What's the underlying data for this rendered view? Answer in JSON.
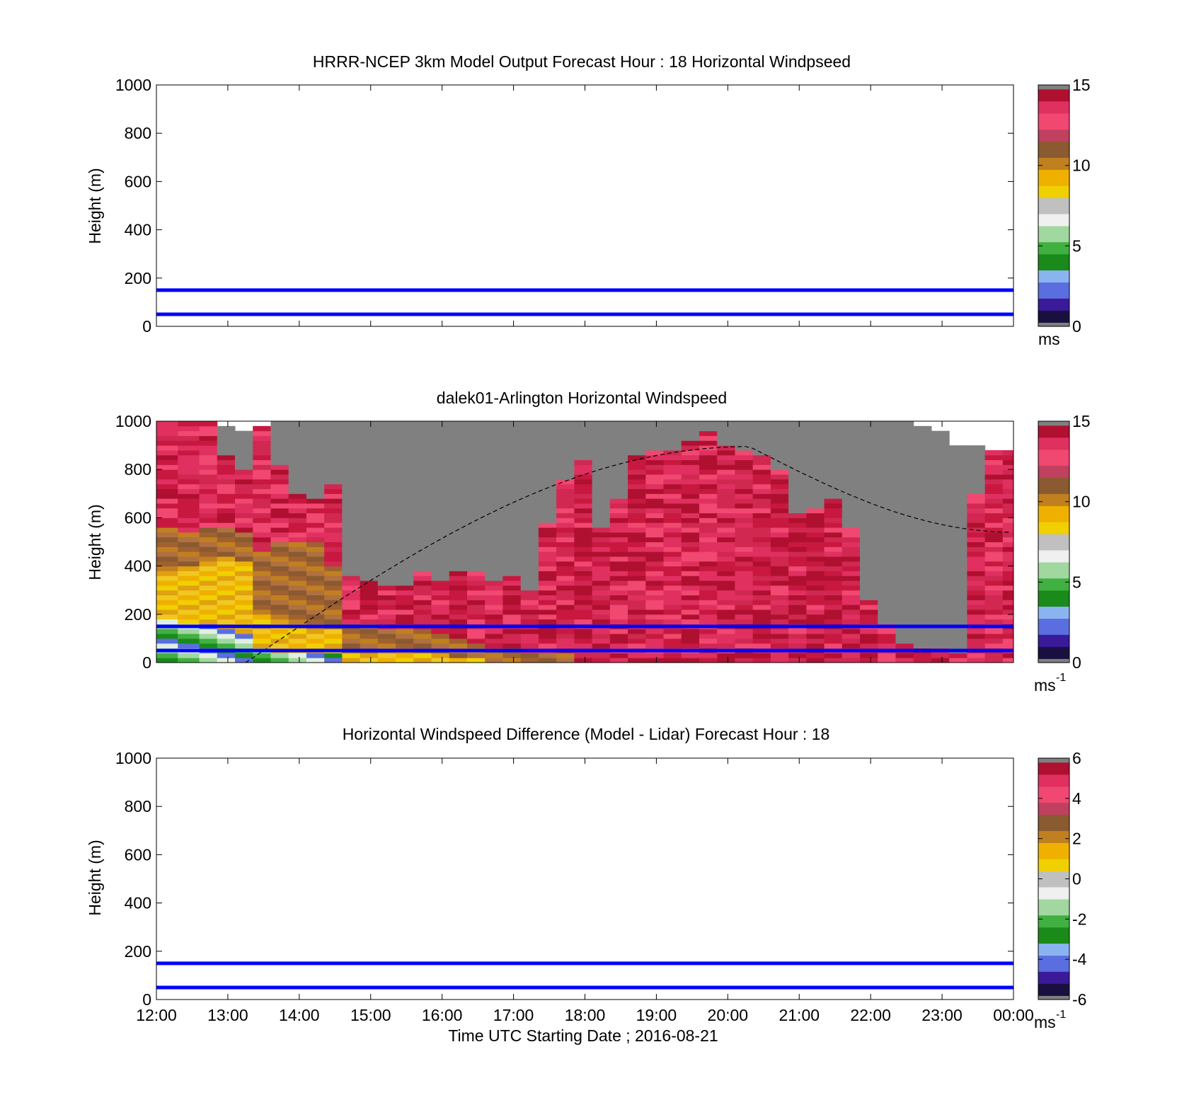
{
  "chart_data": [
    {
      "type": "heatmap",
      "title": "HRRR-NCEP 3km Model Output   Forecast Hour : 18 Horizontal Windpseed",
      "ylabel": "Height (m)",
      "xlabel": "",
      "ylim": [
        0,
        1000
      ],
      "yticks": [
        "0",
        "200",
        "400",
        "600",
        "800",
        "1000"
      ],
      "xlim_hours": [
        12,
        24
      ],
      "xticks": [],
      "colorbar": {
        "ticks": [
          "0",
          "5",
          "10",
          "15"
        ],
        "range": [
          0,
          15
        ],
        "unit": "ms"
      },
      "reference_lines_m": [
        50,
        150
      ],
      "reference_line_color": "#0000ff",
      "data": []
    },
    {
      "type": "heatmap",
      "title": "dalek01-Arlington  Horizontal Windspeed",
      "ylabel": "Height (m)",
      "xlabel": "",
      "ylim": [
        0,
        1000
      ],
      "yticks": [
        "0",
        "200",
        "400",
        "600",
        "800",
        "1000"
      ],
      "xlim_hours": [
        12,
        24
      ],
      "xticks": [],
      "colorbar": {
        "ticks": [
          "0",
          "5",
          "10",
          "15"
        ],
        "range": [
          0,
          15
        ],
        "unit": "ms",
        "unit_exp": "-1"
      },
      "reference_lines_m": [
        50,
        150
      ],
      "reference_line_color": "#0000ff",
      "boundary_layer_curve": {
        "start_hour": 13.25,
        "peak_hour": 20.3,
        "peak_height_m": 895,
        "end_hour": 24,
        "end_height_m": 540
      },
      "no_data_color": "#808080",
      "columns": [
        {
          "t0": 12.0,
          "t1": 12.3,
          "top": 1000,
          "gray_from": 1000,
          "green_to": 170,
          "yellow_to": 380,
          "brown_to": 560,
          "base": 13.8
        },
        {
          "t0": 12.3,
          "t1": 12.6,
          "top": 1000,
          "gray_from": 1000,
          "green_to": 160,
          "yellow_to": 390,
          "brown_to": 540,
          "base": 14.0
        },
        {
          "t0": 12.6,
          "t1": 12.85,
          "top": 1000,
          "gray_from": 1000,
          "green_to": 150,
          "yellow_to": 420,
          "brown_to": 560,
          "base": 14.2
        },
        {
          "t0": 12.85,
          "t1": 13.1,
          "top": 980,
          "gray_from": 860,
          "green_to": 140,
          "yellow_to": 430,
          "brown_to": 545,
          "base": 14.0
        },
        {
          "t0": 13.1,
          "t1": 13.35,
          "top": 960,
          "gray_from": 800,
          "green_to": 120,
          "yellow_to": 420,
          "brown_to": 530,
          "base": 13.5
        },
        {
          "t0": 13.35,
          "t1": 13.6,
          "top": 980,
          "gray_from": 0,
          "green_to": 60,
          "yellow_to": 200,
          "brown_to": 460,
          "base": 13.0
        },
        {
          "t0": 13.6,
          "t1": 13.85,
          "top": 1000,
          "gray_from": 820,
          "green_to": 40,
          "yellow_to": 180,
          "brown_to": 500,
          "base": 13.5
        },
        {
          "t0": 13.85,
          "t1": 14.1,
          "top": 1000,
          "gray_from": 700,
          "green_to": 40,
          "yellow_to": 150,
          "brown_to": 500,
          "base": 13.8
        },
        {
          "t0": 14.1,
          "t1": 14.35,
          "top": 1000,
          "gray_from": 680,
          "green_to": 30,
          "yellow_to": 140,
          "brown_to": 500,
          "base": 13.6
        },
        {
          "t0": 14.35,
          "t1": 14.6,
          "top": 1000,
          "gray_from": 740,
          "green_to": 30,
          "yellow_to": 130,
          "brown_to": 400,
          "base": 13.4
        },
        {
          "t0": 14.6,
          "t1": 14.85,
          "top": 1000,
          "gray_from": 360,
          "green_to": 0,
          "yellow_to": 40,
          "brown_to": 160,
          "base": 13.9
        },
        {
          "t0": 14.85,
          "t1": 15.1,
          "top": 1000,
          "gray_from": 330,
          "green_to": 0,
          "yellow_to": 30,
          "brown_to": 150,
          "base": 13.9
        },
        {
          "t0": 15.1,
          "t1": 15.35,
          "top": 1000,
          "gray_from": 320,
          "green_to": 0,
          "yellow_to": 30,
          "brown_to": 140,
          "base": 14.0
        },
        {
          "t0": 15.35,
          "t1": 15.6,
          "top": 1000,
          "gray_from": 320,
          "green_to": 0,
          "yellow_to": 30,
          "brown_to": 130,
          "base": 14.0
        },
        {
          "t0": 15.6,
          "t1": 15.85,
          "top": 1000,
          "gray_from": 370,
          "green_to": 0,
          "yellow_to": 30,
          "brown_to": 130,
          "base": 14.0
        },
        {
          "t0": 15.85,
          "t1": 16.1,
          "top": 1000,
          "gray_from": 340,
          "green_to": 0,
          "yellow_to": 30,
          "brown_to": 110,
          "base": 14.1
        },
        {
          "t0": 16.1,
          "t1": 16.35,
          "top": 1000,
          "gray_from": 380,
          "green_to": 0,
          "yellow_to": 20,
          "brown_to": 100,
          "base": 14.0
        },
        {
          "t0": 16.35,
          "t1": 16.6,
          "top": 1000,
          "gray_from": 370,
          "green_to": 0,
          "yellow_to": 20,
          "brown_to": 80,
          "base": 14.1
        },
        {
          "t0": 16.6,
          "t1": 16.85,
          "top": 1000,
          "gray_from": 330,
          "green_to": 0,
          "yellow_to": 0,
          "brown_to": 60,
          "base": 14.2
        },
        {
          "t0": 16.85,
          "t1": 17.1,
          "top": 1000,
          "gray_from": 360,
          "green_to": 0,
          "yellow_to": 0,
          "brown_to": 50,
          "base": 14.2
        },
        {
          "t0": 17.1,
          "t1": 17.35,
          "top": 1000,
          "gray_from": 300,
          "green_to": 0,
          "yellow_to": 0,
          "brown_to": 40,
          "base": 14.0
        },
        {
          "t0": 17.35,
          "t1": 17.6,
          "top": 1000,
          "gray_from": 580,
          "green_to": 0,
          "yellow_to": 0,
          "brown_to": 40,
          "base": 14.3
        },
        {
          "t0": 17.6,
          "t1": 17.85,
          "top": 1000,
          "gray_from": 760,
          "green_to": 0,
          "yellow_to": 0,
          "brown_to": 40,
          "base": 13.8
        },
        {
          "t0": 17.85,
          "t1": 18.1,
          "top": 1000,
          "gray_from": 830,
          "green_to": 0,
          "yellow_to": 0,
          "brown_to": 0,
          "base": 13.6
        },
        {
          "t0": 18.1,
          "t1": 18.35,
          "top": 1000,
          "gray_from": 560,
          "green_to": 0,
          "yellow_to": 0,
          "brown_to": 0,
          "base": 13.9
        },
        {
          "t0": 18.35,
          "t1": 18.6,
          "top": 1000,
          "gray_from": 680,
          "green_to": 0,
          "yellow_to": 0,
          "brown_to": 0,
          "base": 14.2
        },
        {
          "t0": 18.6,
          "t1": 18.85,
          "top": 1000,
          "gray_from": 850,
          "green_to": 0,
          "yellow_to": 0,
          "brown_to": 0,
          "base": 14.3
        },
        {
          "t0": 18.85,
          "t1": 19.1,
          "top": 1000,
          "gray_from": 880,
          "green_to": 0,
          "yellow_to": 0,
          "brown_to": 0,
          "base": 14.2
        },
        {
          "t0": 19.1,
          "t1": 19.35,
          "top": 1000,
          "gray_from": 880,
          "green_to": 0,
          "yellow_to": 0,
          "brown_to": 0,
          "base": 14.0
        },
        {
          "t0": 19.35,
          "t1": 19.6,
          "top": 1000,
          "gray_from": 920,
          "green_to": 0,
          "yellow_to": 0,
          "brown_to": 0,
          "base": 14.1
        },
        {
          "t0": 19.6,
          "t1": 19.85,
          "top": 1000,
          "gray_from": 950,
          "green_to": 0,
          "yellow_to": 0,
          "brown_to": 0,
          "base": 13.9
        },
        {
          "t0": 19.85,
          "t1": 20.1,
          "top": 1000,
          "gray_from": 900,
          "green_to": 0,
          "yellow_to": 0,
          "brown_to": 0,
          "base": 14.0
        },
        {
          "t0": 20.1,
          "t1": 20.35,
          "top": 1000,
          "gray_from": 880,
          "green_to": 0,
          "yellow_to": 0,
          "brown_to": 0,
          "base": 14.2
        },
        {
          "t0": 20.35,
          "t1": 20.6,
          "top": 1000,
          "gray_from": 860,
          "green_to": 0,
          "yellow_to": 0,
          "brown_to": 0,
          "base": 14.3
        },
        {
          "t0": 20.6,
          "t1": 20.85,
          "top": 1000,
          "gray_from": 800,
          "green_to": 0,
          "yellow_to": 0,
          "brown_to": 0,
          "base": 14.6
        },
        {
          "t0": 20.85,
          "t1": 21.1,
          "top": 1000,
          "gray_from": 620,
          "green_to": 0,
          "yellow_to": 0,
          "brown_to": 0,
          "base": 14.3
        },
        {
          "t0": 21.1,
          "t1": 21.35,
          "top": 1000,
          "gray_from": 640,
          "green_to": 0,
          "yellow_to": 0,
          "brown_to": 0,
          "base": 14.5
        },
        {
          "t0": 21.35,
          "t1": 21.6,
          "top": 1000,
          "gray_from": 680,
          "green_to": 0,
          "yellow_to": 0,
          "brown_to": 0,
          "base": 14.2
        },
        {
          "t0": 21.6,
          "t1": 21.85,
          "top": 1000,
          "gray_from": 560,
          "green_to": 0,
          "yellow_to": 0,
          "brown_to": 0,
          "base": 14.0
        },
        {
          "t0": 21.85,
          "t1": 22.1,
          "top": 1000,
          "gray_from": 260,
          "green_to": 0,
          "yellow_to": 0,
          "brown_to": 0,
          "base": 14.6
        },
        {
          "t0": 22.1,
          "t1": 22.35,
          "top": 1000,
          "gray_from": 160,
          "green_to": 0,
          "yellow_to": 0,
          "brown_to": 0,
          "base": 14.7
        },
        {
          "t0": 22.35,
          "t1": 22.6,
          "top": 1000,
          "gray_from": 80,
          "green_to": 0,
          "yellow_to": 0,
          "brown_to": 0,
          "base": 14.7
        },
        {
          "t0": 22.6,
          "t1": 22.85,
          "top": 980,
          "gray_from": 60,
          "green_to": 0,
          "yellow_to": 0,
          "brown_to": 0,
          "base": 14.6
        },
        {
          "t0": 22.85,
          "t1": 23.1,
          "top": 960,
          "gray_from": 60,
          "green_to": 0,
          "yellow_to": 0,
          "brown_to": 0,
          "base": 14.6
        },
        {
          "t0": 23.1,
          "t1": 23.35,
          "top": 900,
          "gray_from": 40,
          "green_to": 0,
          "yellow_to": 0,
          "brown_to": 0,
          "base": 14.6
        },
        {
          "t0": 23.35,
          "t1": 23.6,
          "top": 900,
          "gray_from": 700,
          "green_to": 0,
          "yellow_to": 0,
          "brown_to": 0,
          "base": 14.6
        },
        {
          "t0": 23.6,
          "t1": 23.85,
          "top": 880,
          "gray_from": 0,
          "green_to": 0,
          "yellow_to": 0,
          "brown_to": 0,
          "base": 14.6
        },
        {
          "t0": 23.85,
          "t1": 24.0,
          "top": 870,
          "gray_from": 0,
          "green_to": 0,
          "yellow_to": 0,
          "brown_to": 0,
          "base": 14.6
        }
      ]
    },
    {
      "type": "heatmap",
      "title": "Horizontal Windspeed Difference (Model - Lidar) Forecast Hour : 18",
      "ylabel": "Height (m)",
      "xlabel": "Time UTC  Starting Date ; 2016-08-21",
      "ylim": [
        0,
        1000
      ],
      "yticks": [
        "0",
        "200",
        "400",
        "600",
        "800",
        "1000"
      ],
      "xlim_hours": [
        12,
        24
      ],
      "xticks": [
        "12:00",
        "13:00",
        "14:00",
        "15:00",
        "16:00",
        "17:00",
        "18:00",
        "19:00",
        "20:00",
        "21:00",
        "22:00",
        "23:00",
        "00:00"
      ],
      "colorbar": {
        "ticks": [
          "-6",
          "-4",
          "-2",
          "0",
          "2",
          "4",
          "6"
        ],
        "range": [
          -6,
          6
        ],
        "unit": "ms",
        "unit_exp": "-1"
      },
      "reference_lines_m": [
        50,
        150
      ],
      "reference_line_color": "#0000ff",
      "data": []
    }
  ],
  "colormap": [
    "#808080",
    "#1a1040",
    "#3b1a9a",
    "#5a6ee0",
    "#8ab4f0",
    "#1a8a1a",
    "#40b040",
    "#a0d8a0",
    "#f0f0f0",
    "#ffffff",
    "#c0c0c0",
    "#f0d000",
    "#f0b000",
    "#c08020",
    "#8a5a30",
    "#a04050",
    "#f04870",
    "#e03060",
    "#b01030",
    "#808080"
  ]
}
